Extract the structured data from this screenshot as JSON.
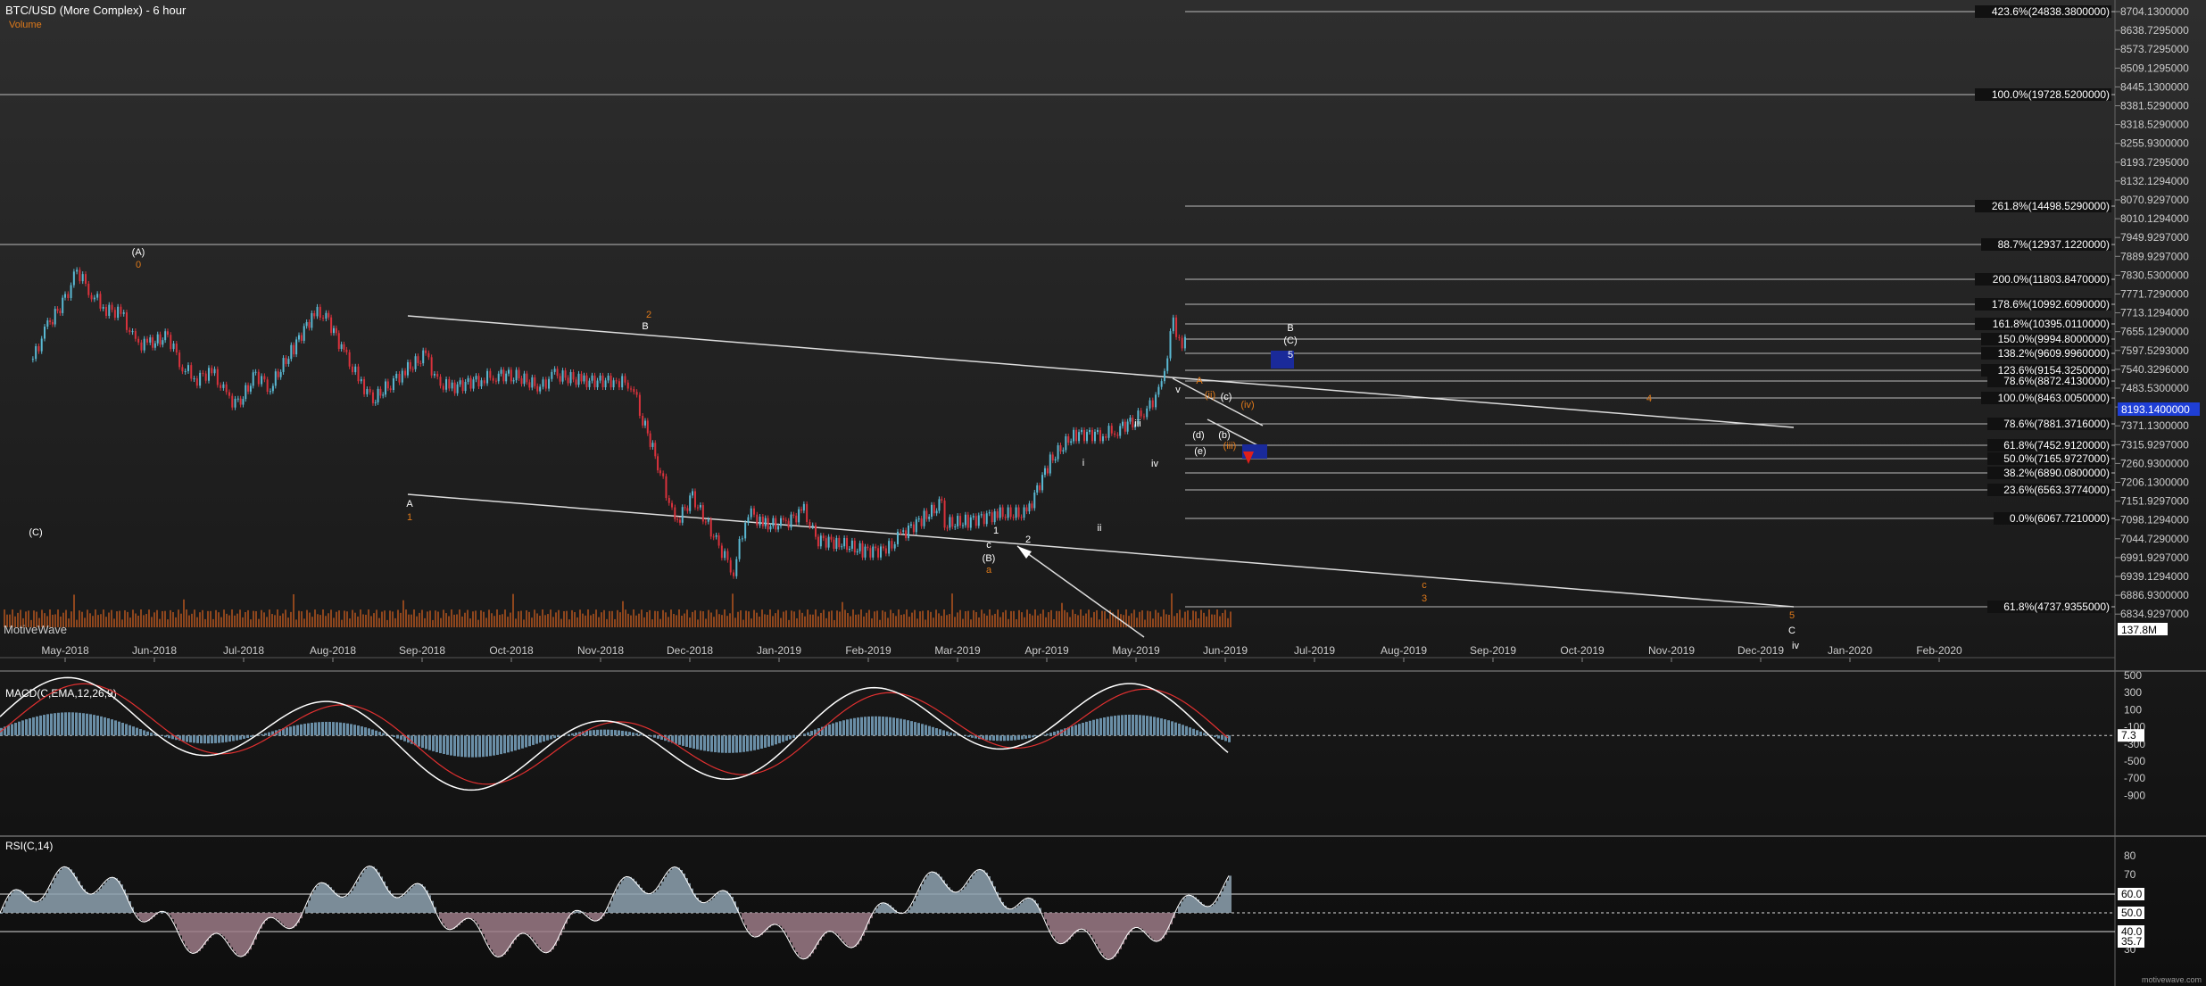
{
  "header": {
    "title": "BTC/USD (More Complex) - 6 hour",
    "volume_label": "Volume",
    "watermark": "MotiveWave",
    "footer_brand": "motivewave.com"
  },
  "chart_data": [
    {
      "type": "line",
      "name": "price",
      "title": "BTC/USD (More Complex) - 6 hour",
      "price_axis_ticks": [
        "8704.1300000",
        "8638.7295000",
        "8573.7295000",
        "8509.1295000",
        "8445.1300000",
        "8381.5290000",
        "8318.5290000",
        "8255.9300000",
        "8193.7295000",
        "8132.1294000",
        "8070.9297000",
        "8010.1294000",
        "7949.9297000",
        "7889.9297000",
        "7830.5300000",
        "7771.7290000",
        "7713.1294000",
        "7655.1290000",
        "7597.5293000",
        "7540.3296000",
        "7483.5300000",
        "7427.1300000",
        "7371.1300000",
        "7315.9297000",
        "7260.9300000",
        "7206.1300000",
        "7151.9297000",
        "7098.1294000",
        "7044.7290000",
        "6991.9297000",
        "6939.1294000",
        "6886.9300000",
        "6834.9297000"
      ],
      "price_axis_scale": "log",
      "date_axis_ticks": [
        "May-2018",
        "Jun-2018",
        "Jul-2018",
        "Aug-2018",
        "Sep-2018",
        "Oct-2018",
        "Nov-2018",
        "Dec-2018",
        "Jan-2019",
        "Feb-2019",
        "Mar-2019",
        "Apr-2019",
        "May-2019",
        "Jun-2019",
        "Jul-2019",
        "Aug-2019",
        "Sep-2019",
        "Oct-2019",
        "Nov-2019",
        "Dec-2019",
        "Jan-2020",
        "Feb-2020"
      ],
      "current_price_label": "8193.1400000",
      "current_volume_label": "137.8M",
      "approx_closes": [
        {
          "x": "2018-04-20",
          "y": 7000
        },
        {
          "x": "2018-04-25",
          "y": 7900
        },
        {
          "x": "2018-05-01",
          "y": 8700
        },
        {
          "x": "2018-05-05",
          "y": 9700
        },
        {
          "x": "2018-05-10",
          "y": 8900
        },
        {
          "x": "2018-05-15",
          "y": 8400
        },
        {
          "x": "2018-05-20",
          "y": 8300
        },
        {
          "x": "2018-05-25",
          "y": 7400
        },
        {
          "x": "2018-05-30",
          "y": 7400
        },
        {
          "x": "2018-06-05",
          "y": 7600
        },
        {
          "x": "2018-06-10",
          "y": 6800
        },
        {
          "x": "2018-06-15",
          "y": 6500
        },
        {
          "x": "2018-06-20",
          "y": 6700
        },
        {
          "x": "2018-06-25",
          "y": 6100
        },
        {
          "x": "2018-06-29",
          "y": 5900
        },
        {
          "x": "2018-07-05",
          "y": 6600
        },
        {
          "x": "2018-07-10",
          "y": 6300
        },
        {
          "x": "2018-07-18",
          "y": 7300
        },
        {
          "x": "2018-07-25",
          "y": 8300
        },
        {
          "x": "2018-07-29",
          "y": 8200
        },
        {
          "x": "2018-08-05",
          "y": 7000
        },
        {
          "x": "2018-08-10",
          "y": 6400
        },
        {
          "x": "2018-08-14",
          "y": 6000
        },
        {
          "x": "2018-08-20",
          "y": 6400
        },
        {
          "x": "2018-08-25",
          "y": 6700
        },
        {
          "x": "2018-09-01",
          "y": 7100
        },
        {
          "x": "2018-09-05",
          "y": 6400
        },
        {
          "x": "2018-09-10",
          "y": 6300
        },
        {
          "x": "2018-09-20",
          "y": 6500
        },
        {
          "x": "2018-09-25",
          "y": 6600
        },
        {
          "x": "2018-10-01",
          "y": 6600
        },
        {
          "x": "2018-10-10",
          "y": 6300
        },
        {
          "x": "2018-10-15",
          "y": 6600
        },
        {
          "x": "2018-10-25",
          "y": 6450
        },
        {
          "x": "2018-11-05",
          "y": 6450
        },
        {
          "x": "2018-11-10",
          "y": 6400
        },
        {
          "x": "2018-11-14",
          "y": 5600
        },
        {
          "x": "2018-11-20",
          "y": 4600
        },
        {
          "x": "2018-11-25",
          "y": 3800
        },
        {
          "x": "2018-12-01",
          "y": 4200
        },
        {
          "x": "2018-12-10",
          "y": 3500
        },
        {
          "x": "2018-12-15",
          "y": 3200
        },
        {
          "x": "2018-12-20",
          "y": 4000
        },
        {
          "x": "2018-12-25",
          "y": 3800
        },
        {
          "x": "2019-01-01",
          "y": 3800
        },
        {
          "x": "2019-01-08",
          "y": 4000
        },
        {
          "x": "2019-01-12",
          "y": 3600
        },
        {
          "x": "2019-01-20",
          "y": 3550
        },
        {
          "x": "2019-01-28",
          "y": 3450
        },
        {
          "x": "2019-02-05",
          "y": 3450
        },
        {
          "x": "2019-02-10",
          "y": 3650
        },
        {
          "x": "2019-02-18",
          "y": 3900
        },
        {
          "x": "2019-02-24",
          "y": 4100
        },
        {
          "x": "2019-02-25",
          "y": 3800
        },
        {
          "x": "2019-03-05",
          "y": 3850
        },
        {
          "x": "2019-03-15",
          "y": 3950
        },
        {
          "x": "2019-03-25",
          "y": 3950
        },
        {
          "x": "2019-04-02",
          "y": 4800
        },
        {
          "x": "2019-04-10",
          "y": 5300
        },
        {
          "x": "2019-04-20",
          "y": 5300
        },
        {
          "x": "2019-04-25",
          "y": 5400
        },
        {
          "x": "2019-05-01",
          "y": 5600
        },
        {
          "x": "2019-05-05",
          "y": 5800
        },
        {
          "x": "2019-05-10",
          "y": 6300
        },
        {
          "x": "2019-05-14",
          "y": 8000
        },
        {
          "x": "2019-05-17",
          "y": 7300
        },
        {
          "x": "2019-05-19",
          "y": 8193
        }
      ],
      "fib_levels": [
        "423.6%(24838.3800000)",
        "100.0%(19728.5200000)",
        "261.8%(14498.5290000)",
        "88.7%(12937.1220000)",
        "200.0%(11803.8470000)",
        "178.6%(10992.6090000)",
        "161.8%(10395.0110000)",
        "150.0%(9994.8000000)",
        "138.2%(9609.9960000)",
        "123.6%(9154.3250000)",
        "78.6%(8872.4130000)",
        "100.0%(8463.0050000)",
        "78.6%(7881.3716000)",
        "61.8%(7452.9120000)",
        "50.0%(7165.9727000)",
        "38.2%(6890.0800000)",
        "23.6%(6563.3774000)",
        "0.0%(6067.7210000)",
        "61.8%(4737.9355000)"
      ],
      "wave_labels": [
        "(A)",
        "0",
        "(C)",
        "A",
        "1",
        "2",
        "B",
        "A",
        "1",
        "2",
        "c",
        "(B)",
        "a",
        "i",
        "ii",
        "iii",
        "iv",
        "v",
        "5",
        "(C)",
        "B",
        "4",
        "c",
        "3",
        "5",
        "C",
        "(iv)",
        "(ii)",
        "(iii)",
        "(b)",
        "(c)",
        "(d)",
        "(e)",
        "iv"
      ]
    },
    {
      "type": "line",
      "name": "MACD(C,EMA,12,26,9)",
      "title": "MACD(C,EMA,12,26,9)",
      "y_ticks": [
        500,
        300,
        100,
        -100,
        -300,
        -500,
        -700,
        -900
      ],
      "current_value_label": "7.3",
      "series": [
        {
          "name": "MACD"
        },
        {
          "name": "Signal"
        },
        {
          "name": "Histogram"
        }
      ]
    },
    {
      "type": "line",
      "name": "RSI(C,14)",
      "title": "RSI(C,14)",
      "y_ticks": [
        80,
        70,
        60,
        50,
        40,
        30
      ],
      "bands": [
        "60.0",
        "50.0",
        "40.0"
      ],
      "current_value_label": "35.7"
    }
  ],
  "colors": {
    "up": "#5ab8d2",
    "down": "#d8323c",
    "wave_orange": "#e07a1a",
    "projection_box": "#1a2a9a",
    "volume": "#b5561f",
    "macd_line": "#ffffff",
    "signal_line": "#e03030",
    "histogram": "#6a8ea6",
    "rsi_up_fill": "#8ea2b0",
    "rsi_down_fill": "#9b7a86"
  }
}
